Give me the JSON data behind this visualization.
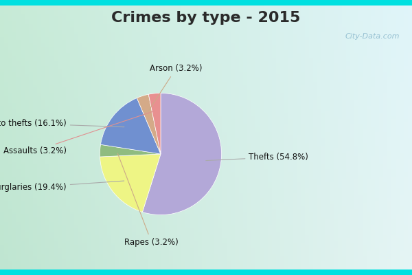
{
  "title": "Crimes by type - 2015",
  "title_fontsize": 16,
  "title_fontweight": "bold",
  "labels": [
    "Thefts",
    "Burglaries",
    "Rapes",
    "Auto thefts",
    "Arson",
    "Assaults"
  ],
  "values": [
    54.8,
    19.4,
    3.2,
    16.1,
    3.2,
    3.2
  ],
  "colors": [
    "#b3a8d8",
    "#eef585",
    "#8fbc80",
    "#7090d0",
    "#d4aa88",
    "#e89090"
  ],
  "border_color": "#00e5e5",
  "border_thickness": 8,
  "background_color": "#c8e8d8",
  "title_color": "#2a2a2a",
  "annotation_color": "#111111",
  "annotation_fontsize": 8.5,
  "watermark_text": "City-Data.com",
  "watermark_color": "#8ab8cc",
  "startangle": 90
}
